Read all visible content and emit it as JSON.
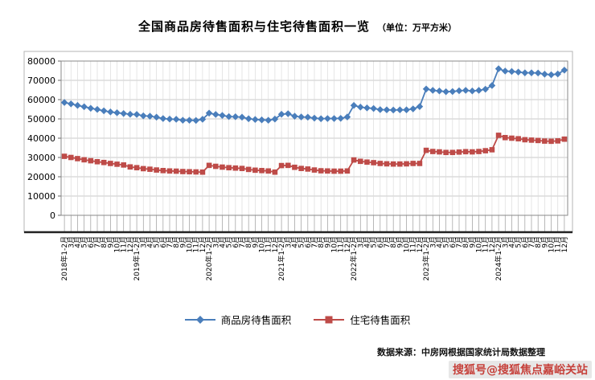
{
  "title": {
    "main": "全国商品房待售面积与住宅待售面积一览",
    "unit": "（单位：万平方米）"
  },
  "footer": {
    "source": "数据来源：中房网根据国家统计局数据整理"
  },
  "watermark": {
    "text": "搜狐号@搜狐焦点嘉峪关站"
  },
  "chart_data": {
    "type": "line",
    "title": "全国商品房待售面积与住宅待售面积一览（单位：万平方米）",
    "xlabel": "",
    "ylabel": "",
    "ylim": [
      0,
      80000
    ],
    "ytick_step": 10000,
    "grid": true,
    "legend_position": "bottom",
    "categories": [
      "2018年1-2月",
      "3月",
      "4月",
      "5月",
      "6月",
      "7月",
      "8月",
      "9月",
      "10月",
      "11月",
      "12月",
      "2019年1-2月",
      "3月",
      "4月",
      "5月",
      "6月",
      "7月",
      "8月",
      "9月",
      "10月",
      "11月",
      "12月",
      "2020年1-2月",
      "3月",
      "4月",
      "5月",
      "6月",
      "7月",
      "8月",
      "9月",
      "10月",
      "11月",
      "12月",
      "2021年1-2月",
      "3月",
      "4月",
      "5月",
      "6月",
      "7月",
      "8月",
      "9月",
      "10月",
      "11月",
      "12月",
      "2022年1-2月",
      "3月",
      "4月",
      "5月",
      "6月",
      "7月",
      "8月",
      "9月",
      "10月",
      "11月",
      "12月",
      "2023年1-2月",
      "3月",
      "4月",
      "5月",
      "6月",
      "7月",
      "8月",
      "9月",
      "10月",
      "11月",
      "12月",
      "2024年1-2月",
      "3月",
      "4月",
      "5月",
      "6月",
      "7月",
      "8月",
      "9月",
      "10月",
      "11月",
      "12月"
    ],
    "series": [
      {
        "name": "商品房待售面积",
        "color": "#4a7ebb",
        "marker": "diamond",
        "values": [
          58500,
          57800,
          57000,
          56300,
          55500,
          54900,
          54200,
          53600,
          53200,
          52800,
          52400,
          52300,
          51600,
          51400,
          50900,
          50200,
          49900,
          49800,
          49300,
          49300,
          49200,
          49800,
          53000,
          52300,
          51800,
          51200,
          51100,
          50900,
          50100,
          49700,
          49500,
          49300,
          49900,
          52400,
          52700,
          51400,
          51000,
          50900,
          50400,
          50100,
          50200,
          50200,
          50300,
          51000,
          57000,
          56100,
          55700,
          55400,
          54800,
          54700,
          54600,
          54700,
          54700,
          55200,
          56400,
          65500,
          64800,
          64500,
          64100,
          64200,
          64600,
          64800,
          64500,
          64800,
          65400,
          67300,
          76000,
          74800,
          74600,
          74300,
          73900,
          73900,
          73800,
          73200,
          72900,
          73300,
          75300
        ]
      },
      {
        "name": "住宅待售面积",
        "color": "#be4b48",
        "marker": "square",
        "values": [
          30600,
          30000,
          29400,
          28800,
          28300,
          27800,
          27400,
          26900,
          26500,
          26100,
          25100,
          24700,
          24200,
          23900,
          23500,
          23200,
          23000,
          22900,
          22700,
          22600,
          22500,
          22400,
          25900,
          25400,
          25000,
          24700,
          24500,
          24300,
          23800,
          23400,
          23200,
          23000,
          22400,
          25800,
          25900,
          24900,
          24300,
          24000,
          23500,
          23100,
          23000,
          22900,
          22900,
          23000,
          28700,
          28000,
          27600,
          27300,
          26900,
          26700,
          26600,
          26600,
          26700,
          26900,
          26900,
          33700,
          33100,
          32900,
          32600,
          32600,
          32800,
          33000,
          32900,
          33100,
          33500,
          34000,
          41500,
          40300,
          40000,
          39700,
          39200,
          39000,
          38800,
          38500,
          38400,
          38600,
          39500
        ]
      }
    ]
  }
}
